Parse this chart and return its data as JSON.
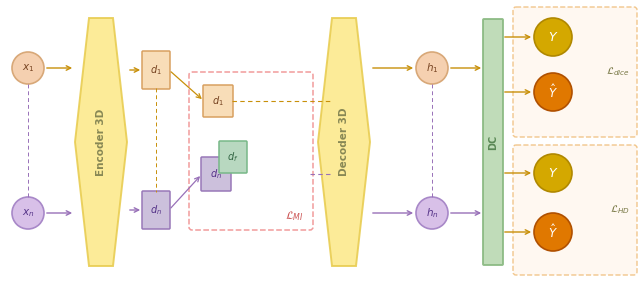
{
  "bg_color": "#ffffff",
  "encoder_color": "#fce98a",
  "encoder_edge": "#e8cc50",
  "decoder_color": "#fce98a",
  "decoder_edge": "#e8cc50",
  "dc_color": "#b8d8b0",
  "dc_edge": "#88b880",
  "x1_color": "#f5d0b0",
  "xn_color": "#d8c0e8",
  "x1_edge": "#d8a878",
  "xn_edge": "#a888c8",
  "d1_box_color": "#f8ddb8",
  "d1_box_edge": "#d8a060",
  "dn_box_color": "#ccc0dc",
  "dn_box_edge": "#9878b8",
  "df_box_color": "#b8d8c0",
  "df_box_edge": "#78b888",
  "mi_box_edge": "#f09090",
  "h1_color": "#f5d0b0",
  "h1_edge": "#d8a878",
  "hn_color": "#d8c0e8",
  "hn_edge": "#a888c8",
  "Y_gold": "#d4a800",
  "Y_gold_edge": "#b08800",
  "Y_orange": "#e07800",
  "Y_orange_edge": "#b05000",
  "output_box_color": "#fff8f0",
  "output_box_edge": "#f0c080",
  "arrow_orange": "#c8900a",
  "arrow_purple": "#9870b8",
  "text_enc": "#888855",
  "text_green": "#5a8855"
}
